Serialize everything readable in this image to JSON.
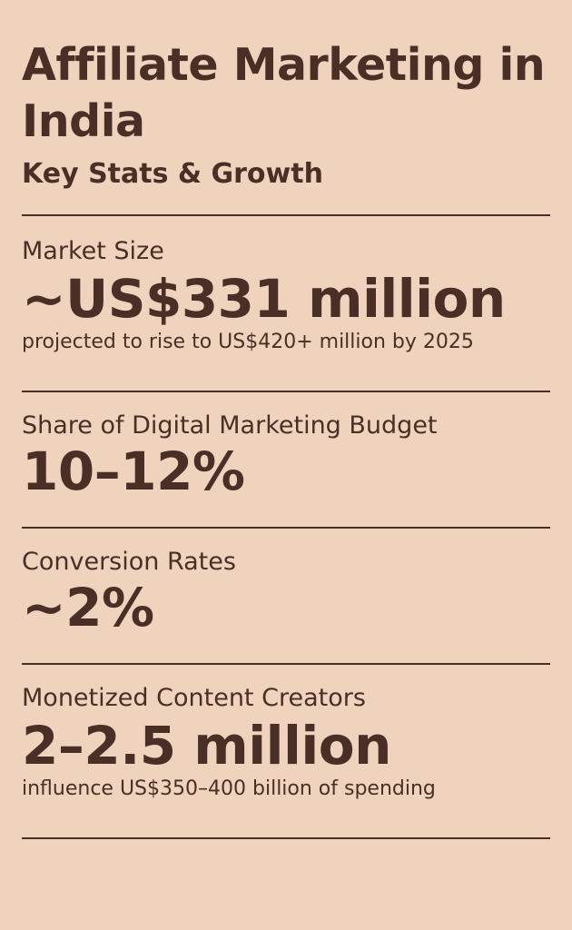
{
  "header": {
    "title": "Affiliate Marketing in India",
    "subtitle": "Key Stats & Growth"
  },
  "stats": [
    {
      "label": "Market Size",
      "value": "~US$331 million",
      "note": "projected to rise to US$420+ million by 2025"
    },
    {
      "label": "Share of Digital Marketing Budget",
      "value": "10–12%"
    },
    {
      "label": "Conversion Rates",
      "value": "~2%"
    },
    {
      "label": "Monetized Content Creators",
      "value": "2–2.5 million",
      "note": "influence US$350–400 billion of spending"
    }
  ],
  "colors": {
    "background": "#efd3bd",
    "text": "#4a2f27"
  }
}
